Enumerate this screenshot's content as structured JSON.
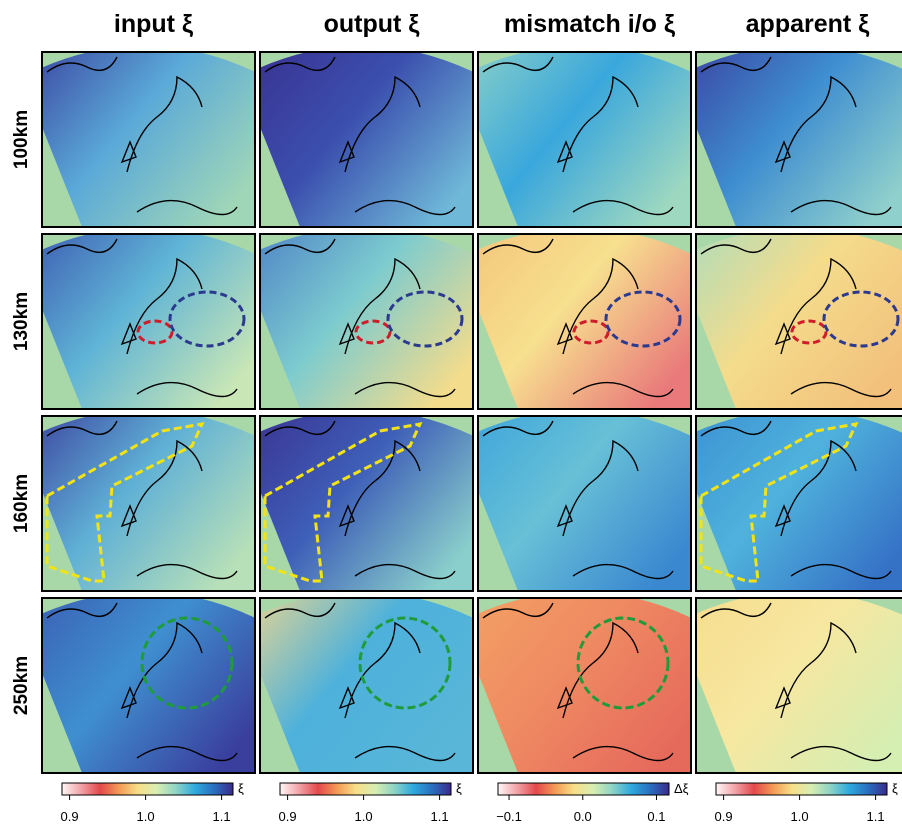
{
  "columns": [
    "input ξ",
    "output ξ",
    "mismatch i/o ξ",
    "apparent ξ"
  ],
  "rows": [
    "100km",
    "130km",
    "160km",
    "250km"
  ],
  "colorbars": [
    {
      "lim": [
        0.89,
        1.115
      ],
      "ticks": [
        0.9,
        {
          "value": 1,
          "label": "1.0"
        },
        1.1
      ],
      "unit": "ξ",
      "colors": [
        "#fff7f7",
        "#f2a3a8",
        "#e3484b",
        "#f39a55",
        "#f7df88",
        "#d8eeb2",
        "#8fd4c6",
        "#2eaade",
        "#2a6fc0",
        "#3b2b8c"
      ]
    },
    {
      "lim": [
        0.89,
        1.115
      ],
      "ticks": [
        0.9,
        {
          "value": 1,
          "label": "1.0"
        },
        1.1
      ],
      "unit": "ξ",
      "colors": [
        "#fff7f7",
        "#f2a3a8",
        "#e3484b",
        "#f39a55",
        "#f7df88",
        "#d8eeb2",
        "#8fd4c6",
        "#2eaade",
        "#2a6fc0",
        "#3b2b8c"
      ]
    },
    {
      "lim": [
        -0.115,
        0.117
      ],
      "ticks": [
        {
          "value": -0.1,
          "label": "−0.1"
        },
        {
          "value": 0,
          "label": "0.0"
        },
        0.1
      ],
      "unit": "Δξ",
      "colors": [
        "#fff7f7",
        "#f2a3a8",
        "#e3484b",
        "#f39a55",
        "#f7df88",
        "#d8eeb2",
        "#8fd4c6",
        "#2eaade",
        "#2a6fc0",
        "#3b2b8c"
      ]
    },
    {
      "lim": [
        0.89,
        1.115
      ],
      "ticks": [
        0.9,
        {
          "value": 1,
          "label": "1.0"
        },
        1.1
      ],
      "unit": "ξ",
      "colors": [
        "#fff7f7",
        "#f2a3a8",
        "#e3484b",
        "#f39a55",
        "#f7df88",
        "#d8eeb2",
        "#8fd4c6",
        "#2eaade",
        "#2a6fc0",
        "#3b2b8c"
      ]
    }
  ]
}
